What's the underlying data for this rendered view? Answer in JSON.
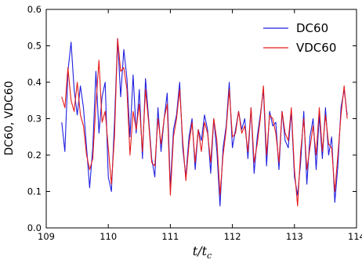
{
  "chart_data": {
    "type": "line",
    "xlabel_main": "t/t",
    "xlabel_sub": "c",
    "ylabel": "DC60, VDC60",
    "xlim": [
      109,
      114
    ],
    "ylim": [
      0.0,
      0.6
    ],
    "xticks": [
      "109",
      "110",
      "111",
      "112",
      "113",
      "114"
    ],
    "yticks": [
      "0.0",
      "0.1",
      "0.2",
      "0.3",
      "0.4",
      "0.5",
      "0.6"
    ],
    "grid": false,
    "legend_position": "top-right",
    "series": [
      {
        "name": "DC60",
        "color": "#1f1fe0",
        "x": [
          109.25,
          109.3,
          109.35,
          109.4,
          109.45,
          109.5,
          109.55,
          109.6,
          109.65,
          109.7,
          109.75,
          109.8,
          109.85,
          109.9,
          109.95,
          110.0,
          110.05,
          110.1,
          110.15,
          110.2,
          110.25,
          110.3,
          110.35,
          110.4,
          110.45,
          110.5,
          110.55,
          110.6,
          110.65,
          110.7,
          110.75,
          110.8,
          110.85,
          110.9,
          110.95,
          111.0,
          111.05,
          111.1,
          111.15,
          111.2,
          111.25,
          111.3,
          111.35,
          111.4,
          111.45,
          111.5,
          111.55,
          111.6,
          111.65,
          111.7,
          111.75,
          111.8,
          111.85,
          111.9,
          111.95,
          112.0,
          112.05,
          112.1,
          112.15,
          112.2,
          112.25,
          112.3,
          112.35,
          112.4,
          112.45,
          112.5,
          112.55,
          112.6,
          112.65,
          112.7,
          112.75,
          112.8,
          112.85,
          112.9,
          112.95,
          113.0,
          113.05,
          113.1,
          113.15,
          113.2,
          113.25,
          113.3,
          113.35,
          113.4,
          113.45,
          113.5,
          113.55,
          113.6,
          113.65,
          113.7,
          113.75,
          113.8,
          113.85
        ],
        "values": [
          0.29,
          0.21,
          0.43,
          0.51,
          0.38,
          0.31,
          0.39,
          0.33,
          0.22,
          0.11,
          0.22,
          0.43,
          0.26,
          0.36,
          0.4,
          0.14,
          0.1,
          0.29,
          0.52,
          0.36,
          0.49,
          0.41,
          0.25,
          0.42,
          0.26,
          0.38,
          0.19,
          0.41,
          0.3,
          0.19,
          0.14,
          0.33,
          0.21,
          0.3,
          0.37,
          0.11,
          0.27,
          0.31,
          0.4,
          0.22,
          0.14,
          0.25,
          0.3,
          0.16,
          0.27,
          0.24,
          0.31,
          0.27,
          0.15,
          0.3,
          0.21,
          0.06,
          0.22,
          0.28,
          0.4,
          0.22,
          0.27,
          0.32,
          0.27,
          0.3,
          0.19,
          0.33,
          0.15,
          0.25,
          0.31,
          0.38,
          0.17,
          0.32,
          0.28,
          0.29,
          0.16,
          0.32,
          0.24,
          0.22,
          0.32,
          0.14,
          0.09,
          0.18,
          0.32,
          0.12,
          0.25,
          0.3,
          0.16,
          0.31,
          0.19,
          0.33,
          0.2,
          0.25,
          0.07,
          0.17,
          0.33,
          0.38,
          0.31
        ]
      },
      {
        "name": "VDC60",
        "color": "#e51b1b",
        "x": [
          109.25,
          109.3,
          109.35,
          109.4,
          109.45,
          109.5,
          109.55,
          109.6,
          109.65,
          109.7,
          109.75,
          109.8,
          109.85,
          109.9,
          109.95,
          110.0,
          110.05,
          110.1,
          110.15,
          110.2,
          110.25,
          110.3,
          110.35,
          110.4,
          110.45,
          110.5,
          110.55,
          110.6,
          110.65,
          110.7,
          110.75,
          110.8,
          110.85,
          110.9,
          110.95,
          111.0,
          111.05,
          111.1,
          111.15,
          111.2,
          111.25,
          111.3,
          111.35,
          111.4,
          111.45,
          111.5,
          111.55,
          111.6,
          111.65,
          111.7,
          111.75,
          111.8,
          111.85,
          111.9,
          111.95,
          112.0,
          112.05,
          112.1,
          112.15,
          112.2,
          112.25,
          112.3,
          112.35,
          112.4,
          112.45,
          112.5,
          112.55,
          112.6,
          112.65,
          112.7,
          112.75,
          112.8,
          112.85,
          112.9,
          112.95,
          113.0,
          113.05,
          113.1,
          113.15,
          113.2,
          113.25,
          113.3,
          113.35,
          113.4,
          113.45,
          113.5,
          113.55,
          113.6,
          113.65,
          113.7,
          113.75,
          113.8,
          113.85
        ],
        "values": [
          0.36,
          0.33,
          0.44,
          0.35,
          0.32,
          0.4,
          0.31,
          0.28,
          0.2,
          0.16,
          0.19,
          0.34,
          0.46,
          0.29,
          0.32,
          0.22,
          0.12,
          0.25,
          0.52,
          0.43,
          0.44,
          0.38,
          0.2,
          0.32,
          0.27,
          0.34,
          0.21,
          0.38,
          0.29,
          0.18,
          0.17,
          0.3,
          0.23,
          0.3,
          0.34,
          0.09,
          0.25,
          0.3,
          0.38,
          0.24,
          0.13,
          0.23,
          0.29,
          0.18,
          0.27,
          0.21,
          0.29,
          0.26,
          0.18,
          0.3,
          0.24,
          0.09,
          0.2,
          0.27,
          0.38,
          0.25,
          0.26,
          0.32,
          0.26,
          0.28,
          0.21,
          0.33,
          0.18,
          0.23,
          0.3,
          0.39,
          0.2,
          0.31,
          0.3,
          0.26,
          0.18,
          0.32,
          0.26,
          0.24,
          0.33,
          0.16,
          0.06,
          0.21,
          0.3,
          0.16,
          0.22,
          0.28,
          0.2,
          0.33,
          0.21,
          0.31,
          0.23,
          0.22,
          0.1,
          0.2,
          0.31,
          0.39,
          0.3
        ]
      }
    ]
  }
}
